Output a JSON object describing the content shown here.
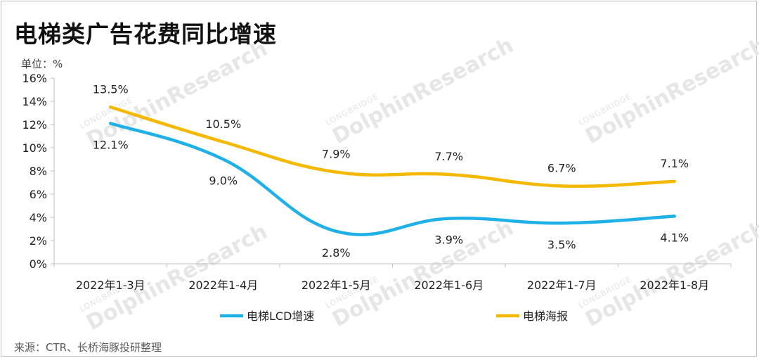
{
  "title": "电梯类广告花费同比增速",
  "unit_label": "单位：%",
  "source": "来源：CTR、长桥海豚投研整理",
  "watermark": {
    "brand": "DolphinResearch",
    "sub": "LONGBRIDGE"
  },
  "chart_data": {
    "type": "line",
    "categories": [
      "2022年1-3月",
      "2022年1-4月",
      "2022年1-5月",
      "2022年1-6月",
      "2022年1-7月",
      "2022年1-8月"
    ],
    "series": [
      {
        "name": "电梯LCD增速",
        "color": "#1fb0e8",
        "values": [
          12.1,
          9.0,
          2.8,
          3.9,
          3.5,
          4.1
        ]
      },
      {
        "name": "电梯海报",
        "color": "#f5b800",
        "values": [
          13.5,
          10.5,
          7.9,
          7.7,
          6.7,
          7.1
        ]
      }
    ],
    "value_suffix": "%",
    "ylim": [
      0,
      16
    ],
    "yticks": [
      "0%",
      "2%",
      "4%",
      "6%",
      "8%",
      "10%",
      "12%",
      "14%",
      "16%"
    ],
    "smooth": true,
    "grid": false,
    "legend_position": "bottom"
  }
}
